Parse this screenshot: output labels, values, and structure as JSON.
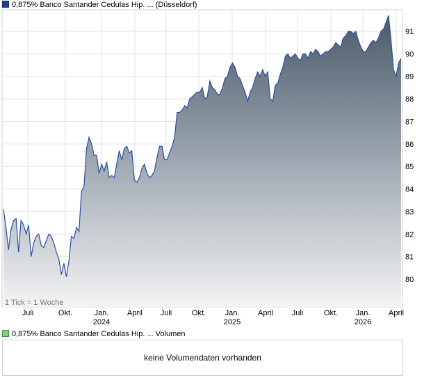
{
  "legend": {
    "price_label": "0,875% Banco Santander Cedulas Hip. ... (Düsseldorf)",
    "volume_label": "0,875% Banco Santander Cedulas Hip. ... Volumen"
  },
  "tick_note": "1 Tick = 1 Woche",
  "volume_message": "keine Volumendaten vorhanden",
  "colors": {
    "line": "#2a4ea0",
    "fill_top": "#4a5a6a",
    "fill_bottom": "#f3f4f6",
    "swatch_price": "#1f3f8f",
    "swatch_volume": "#7fd07f"
  },
  "chart_data": {
    "type": "area",
    "title": "0,875% Banco Santander Cedulas Hip. ... (Düsseldorf)",
    "xlabel": "",
    "ylabel": "",
    "ylim": [
      79,
      92
    ],
    "y_ticks": [
      80,
      81,
      82,
      83,
      84,
      85,
      86,
      87,
      88,
      89,
      90,
      91
    ],
    "x_ticks": [
      {
        "label": "Juli",
        "sub": ""
      },
      {
        "label": "Okt.",
        "sub": ""
      },
      {
        "label": "Jan.",
        "sub": "2024"
      },
      {
        "label": "April",
        "sub": ""
      },
      {
        "label": "Juli",
        "sub": ""
      },
      {
        "label": "Okt.",
        "sub": ""
      },
      {
        "label": "Jan.",
        "sub": "2025"
      },
      {
        "label": "April",
        "sub": ""
      },
      {
        "label": "Juli",
        "sub": ""
      },
      {
        "label": "Okt.",
        "sub": ""
      },
      {
        "label": "Jan.",
        "sub": "2026"
      },
      {
        "label": "April",
        "sub": ""
      }
    ],
    "grid": true,
    "series": [
      {
        "values": [
          83.1,
          82.3,
          81.3,
          82.2,
          82.6,
          82.7,
          81.2,
          82.6,
          82.4,
          82.0,
          82.4,
          81.0,
          81.6,
          81.9,
          82.0,
          81.5,
          81.4,
          81.7,
          82.0,
          81.9,
          81.6,
          81.2,
          80.9,
          80.2,
          80.7,
          80.1,
          80.8,
          81.9,
          81.8,
          82.3,
          82.1,
          83.9,
          84.1,
          85.8,
          86.3,
          86.0,
          85.5,
          85.5,
          84.7,
          85.1,
          84.8,
          85.2,
          84.5,
          84.6,
          84.5,
          85.1,
          85.7,
          85.3,
          85.8,
          85.9,
          85.6,
          85.7,
          84.4,
          84.3,
          84.5,
          84.9,
          85.1,
          84.7,
          84.5,
          84.6,
          84.8,
          85.4,
          85.9,
          85.9,
          85.3,
          85.3,
          85.6,
          85.9,
          86.3,
          87.4,
          87.4,
          87.5,
          87.7,
          87.6,
          88.0,
          88.1,
          88.2,
          88.3,
          88.3,
          88.5,
          88.0,
          88.1,
          88.8,
          88.5,
          88.4,
          88.2,
          88.2,
          88.5,
          88.9,
          89.0,
          89.4,
          89.6,
          89.4,
          89.0,
          88.9,
          88.6,
          88.3,
          87.9,
          88.3,
          88.5,
          88.9,
          89.2,
          89.0,
          89.3,
          89.0,
          89.2,
          88.0,
          87.9,
          88.6,
          88.7,
          89.1,
          89.4,
          89.9,
          90.0,
          89.8,
          89.9,
          90.0,
          89.8,
          89.7,
          90.0,
          90.0,
          89.8,
          90.1,
          90.0,
          90.2,
          90.1,
          89.9,
          90.0,
          90.1,
          90.1,
          90.2,
          90.3,
          90.5,
          90.4,
          90.3,
          90.7,
          90.8,
          91.0,
          91.0,
          90.9,
          91.0,
          90.6,
          90.3,
          90.1,
          90.1,
          90.3,
          90.5,
          90.6,
          90.5,
          90.7,
          91.0,
          91.1,
          91.4,
          91.7,
          90.6,
          89.3,
          89.0,
          89.6,
          89.8
        ]
      }
    ]
  }
}
